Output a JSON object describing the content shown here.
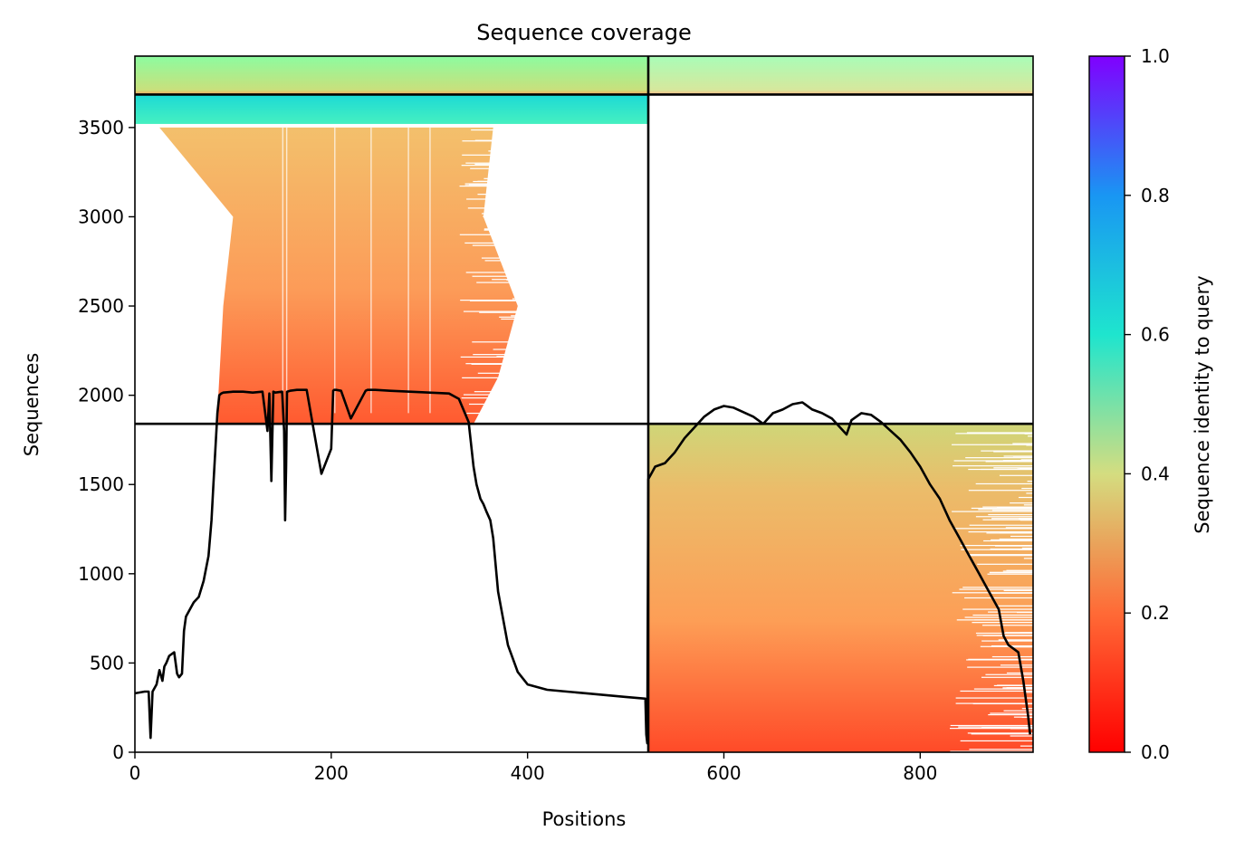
{
  "chart_data": {
    "type": "heatmap",
    "title": "Sequence coverage",
    "xlabel": "Positions",
    "ylabel": "Sequences",
    "xlim": [
      0,
      915
    ],
    "ylim": [
      0,
      3900
    ],
    "x_ticks": [
      0,
      200,
      400,
      600,
      800
    ],
    "x_tick_labels": [
      "0",
      "200",
      "400",
      "600",
      "800"
    ],
    "y_ticks": [
      0,
      500,
      1000,
      1500,
      2000,
      2500,
      3000,
      3500
    ],
    "y_tick_labels": [
      "0",
      "500",
      "1000",
      "1500",
      "2000",
      "2500",
      "3000",
      "3500"
    ],
    "colorbar": {
      "label": "Sequence identity to query",
      "colormap": "rainbow_r",
      "range": [
        0,
        1
      ],
      "ticks": [
        0.0,
        0.2,
        0.4,
        0.6,
        0.8,
        1.0
      ],
      "tick_labels": [
        "0.0",
        "0.2",
        "0.4",
        "0.6",
        "0.8",
        "1.0"
      ],
      "stops": [
        "#ff0000",
        "#ff6a36",
        "#d4dd80",
        "#1ee5ce",
        "#1996f3",
        "#8000ff"
      ]
    },
    "segment_boundaries": {
      "vertical_x": 523,
      "horizontal_y": [
        1840,
        3685
      ]
    },
    "coverage_blocks": [
      {
        "name": "domain-1-rows",
        "y_range": [
          1840,
          3520
        ],
        "identity_range": [
          0.12,
          0.33
        ],
        "left_edge": [
          [
            1840,
            85
          ],
          [
            2000,
            85
          ],
          [
            2500,
            90
          ],
          [
            3000,
            100
          ],
          [
            3300,
            55
          ],
          [
            3500,
            25
          ]
        ],
        "right_edge": [
          [
            1840,
            345
          ],
          [
            2100,
            370
          ],
          [
            2500,
            390
          ],
          [
            3000,
            355
          ],
          [
            3500,
            365
          ]
        ]
      },
      {
        "name": "domain-1-high-identity-rows",
        "y_range": [
          3520,
          3685
        ],
        "identity_range": [
          0.55,
          0.65
        ],
        "x_range": [
          0,
          523
        ]
      },
      {
        "name": "domain-2-rows",
        "y_range": [
          0,
          1840
        ],
        "identity_range": [
          0.12,
          0.33
        ],
        "x_range": [
          523,
          915
        ]
      },
      {
        "name": "full-length-top-rows",
        "y_range": [
          3685,
          3900
        ],
        "identity_range": [
          0.2,
          0.45
        ],
        "x_range": [
          0,
          915
        ]
      }
    ],
    "coverage_line": {
      "name": "coverage",
      "color": "#000000",
      "x": [
        0,
        10,
        14,
        16,
        18,
        22,
        25,
        28,
        30,
        32,
        35,
        40,
        43,
        45,
        48,
        50,
        52,
        55,
        60,
        65,
        70,
        75,
        78,
        80,
        82,
        84,
        86,
        88,
        90,
        100,
        110,
        120,
        130,
        135,
        137,
        139,
        141,
        143,
        150,
        152,
        153,
        154,
        155,
        158,
        165,
        175,
        190,
        200,
        202,
        203,
        205,
        210,
        220,
        235,
        237,
        239,
        245,
        260,
        280,
        300,
        320,
        330,
        340,
        345,
        348,
        352,
        355,
        358,
        362,
        365,
        370,
        380,
        390,
        400,
        420,
        440,
        460,
        480,
        500,
        520,
        521,
        522,
        523,
        526,
        530,
        540,
        550,
        560,
        570,
        580,
        590,
        600,
        610,
        630,
        640,
        650,
        660,
        670,
        680,
        690,
        700,
        710,
        720,
        725,
        730,
        740,
        750,
        760,
        770,
        780,
        790,
        800,
        810,
        820,
        830,
        840,
        850,
        860,
        870,
        880,
        885,
        890,
        895,
        900,
        905,
        910,
        912
      ],
      "y": [
        330,
        340,
        340,
        80,
        340,
        380,
        460,
        400,
        480,
        500,
        540,
        560,
        440,
        420,
        440,
        680,
        760,
        790,
        840,
        870,
        960,
        1100,
        1300,
        1500,
        1700,
        1900,
        2000,
        2010,
        2015,
        2020,
        2020,
        2015,
        2020,
        1800,
        2010,
        1520,
        2020,
        2015,
        2020,
        1800,
        1300,
        1600,
        2020,
        2025,
        2030,
        2030,
        1560,
        1700,
        2025,
        2030,
        2030,
        2025,
        1870,
        2025,
        2030,
        2030,
        2030,
        2025,
        2020,
        2015,
        2010,
        1980,
        1850,
        1600,
        1500,
        1420,
        1390,
        1350,
        1300,
        1200,
        900,
        600,
        450,
        380,
        350,
        340,
        330,
        320,
        310,
        300,
        100,
        50,
        1530,
        1560,
        1600,
        1620,
        1680,
        1760,
        1820,
        1880,
        1920,
        1940,
        1930,
        1880,
        1840,
        1900,
        1920,
        1950,
        1960,
        1920,
        1900,
        1870,
        1810,
        1780,
        1860,
        1900,
        1890,
        1850,
        1800,
        1750,
        1680,
        1600,
        1500,
        1420,
        1300,
        1200,
        1100,
        1000,
        900,
        800,
        650,
        600,
        580,
        560,
        400,
        200,
        100
      ]
    }
  }
}
